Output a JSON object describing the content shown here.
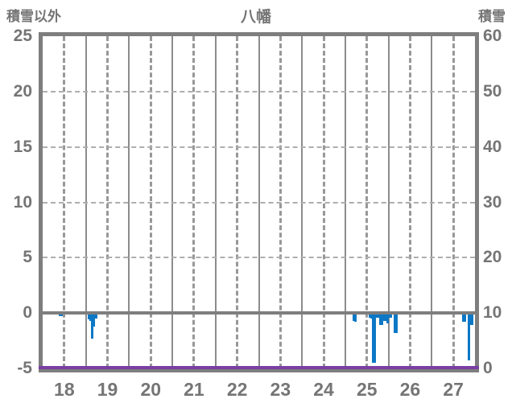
{
  "header": {
    "left_axis_title": "積雪以外",
    "chart_title": "八幡",
    "right_axis_title": "積雪"
  },
  "chart_data": {
    "type": "bar",
    "title": "八幡",
    "station": "八幡",
    "left_axis": {
      "label": "積雪以外",
      "min": -5,
      "max": 25,
      "ticks": [
        25,
        20,
        15,
        10,
        5,
        0,
        -5
      ]
    },
    "right_axis": {
      "label": "積雪",
      "min": 0,
      "max": 60,
      "ticks": [
        60,
        50,
        40,
        30,
        20,
        10,
        0
      ]
    },
    "x_axis": {
      "tick_labels": [
        "18",
        "19",
        "20",
        "21",
        "22",
        "23",
        "24",
        "25",
        "26",
        "27"
      ],
      "first_day": 18,
      "num_days": 10,
      "hours_per_day": 24
    },
    "grid": {
      "horizontal_dashed_at": [
        20,
        15,
        10,
        5
      ],
      "zero_line_at": 0,
      "vertical_solid": "day-boundaries",
      "vertical_dashed": "day-midpoints"
    },
    "series": [
      {
        "name": "hourly-bars",
        "type": "bar",
        "axis": "left",
        "color": "#0d78c6",
        "points": [
          {
            "day": 18,
            "hour": 10,
            "value": -0.3
          },
          {
            "day": 18,
            "hour": 11,
            "value": -0.3
          },
          {
            "day": 19,
            "hour": 2,
            "value": -0.6
          },
          {
            "day": 19,
            "hour": 3,
            "value": -0.7
          },
          {
            "day": 19,
            "hour": 4,
            "value": -2.3
          },
          {
            "day": 19,
            "hour": 5,
            "value": -1.2
          },
          {
            "day": 19,
            "hour": 6,
            "value": -0.5
          },
          {
            "day": 25,
            "hour": 5,
            "value": -0.7
          },
          {
            "day": 25,
            "hour": 6,
            "value": -0.8
          },
          {
            "day": 25,
            "hour": 14,
            "value": -0.4
          },
          {
            "day": 25,
            "hour": 15,
            "value": -0.5
          },
          {
            "day": 25,
            "hour": 16,
            "value": -4.5
          },
          {
            "day": 25,
            "hour": 17,
            "value": -4.5
          },
          {
            "day": 25,
            "hour": 18,
            "value": -0.4
          },
          {
            "day": 25,
            "hour": 19,
            "value": -0.4
          },
          {
            "day": 25,
            "hour": 20,
            "value": -1.1
          },
          {
            "day": 25,
            "hour": 21,
            "value": -1.1
          },
          {
            "day": 25,
            "hour": 22,
            "value": -0.7
          },
          {
            "day": 25,
            "hour": 23,
            "value": -0.7
          },
          {
            "day": 25,
            "hour": 24,
            "value": -0.9
          },
          {
            "day": 26,
            "hour": 1,
            "value": -0.4
          },
          {
            "day": 26,
            "hour": 2,
            "value": -0.4
          },
          {
            "day": 26,
            "hour": 4,
            "value": -1.8
          },
          {
            "day": 26,
            "hour": 5,
            "value": -1.8
          },
          {
            "day": 27,
            "hour": 18,
            "value": -0.8
          },
          {
            "day": 27,
            "hour": 19,
            "value": -0.8
          },
          {
            "day": 27,
            "hour": 21,
            "value": -4.3
          },
          {
            "day": 27,
            "hour": 22,
            "value": -1.1
          },
          {
            "day": 27,
            "hour": 23,
            "value": -1.1
          }
        ]
      },
      {
        "name": "snow-depth-line",
        "type": "line",
        "axis": "right",
        "color": "#7b3fa3",
        "constant_value": 0
      }
    ]
  },
  "colors": {
    "bar_blue": "#0d78c6",
    "snow_purple": "#7b3fa3",
    "frame_gray": "#7e7e7e",
    "text_gray": "#757575",
    "grid_solid": "#8c8c8c",
    "grid_dashed": "#989898"
  }
}
